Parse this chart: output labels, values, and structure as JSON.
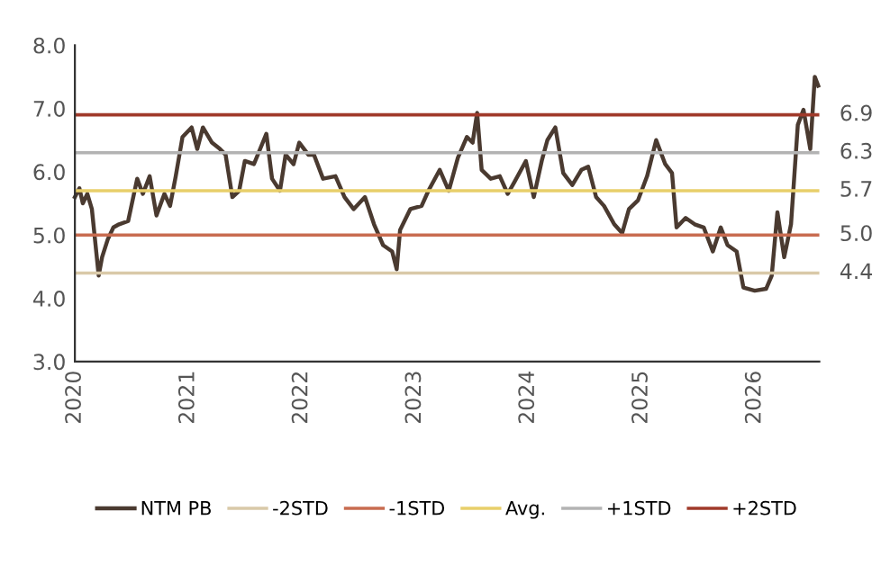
{
  "chart_data": {
    "type": "line",
    "x": [
      2020.0,
      2020.04,
      2020.07,
      2020.11,
      2020.15,
      2020.21,
      2020.24,
      2020.29,
      2020.34,
      2020.39,
      2020.47,
      2020.55,
      2020.6,
      2020.66,
      2020.72,
      2020.79,
      2020.84,
      2020.89,
      2020.95,
      2021.03,
      2021.08,
      2021.13,
      2021.21,
      2021.28,
      2021.33,
      2021.39,
      2021.45,
      2021.5,
      2021.58,
      2021.69,
      2021.74,
      2021.81,
      2021.86,
      2021.93,
      2021.98,
      2022.06,
      2022.11,
      2022.19,
      2022.3,
      2022.38,
      2022.46,
      2022.56,
      2022.64,
      2022.72,
      2022.8,
      2022.84,
      2022.87,
      2022.96,
      2023.06,
      2023.12,
      2023.22,
      2023.3,
      2023.38,
      2023.46,
      2023.51,
      2023.55,
      2023.59,
      2023.67,
      2023.75,
      2023.82,
      2023.88,
      2023.98,
      2024.05,
      2024.12,
      2024.17,
      2024.24,
      2024.31,
      2024.39,
      2024.47,
      2024.53,
      2024.6,
      2024.67,
      2024.76,
      2024.83,
      2024.89,
      2024.97,
      2025.05,
      2025.13,
      2025.21,
      2025.27,
      2025.31,
      2025.39,
      2025.47,
      2025.55,
      2025.63,
      2025.7,
      2025.76,
      2025.84,
      2025.9,
      2026.0,
      2026.1,
      2026.15,
      2026.2,
      2026.26,
      2026.32,
      2026.38,
      2026.43,
      2026.49,
      2026.53,
      2026.56
    ],
    "series": [
      {
        "name": "NTM PB",
        "color": "#4a3a30",
        "values": [
          5.6,
          5.74,
          5.5,
          5.65,
          5.41,
          4.36,
          4.65,
          4.93,
          5.12,
          5.17,
          5.22,
          5.89,
          5.65,
          5.93,
          5.31,
          5.65,
          5.46,
          5.93,
          6.55,
          6.7,
          6.36,
          6.7,
          6.46,
          6.36,
          6.27,
          5.6,
          5.7,
          6.17,
          6.12,
          6.6,
          5.89,
          5.7,
          6.27,
          6.12,
          6.46,
          6.27,
          6.27,
          5.89,
          5.93,
          5.6,
          5.41,
          5.6,
          5.17,
          4.84,
          4.74,
          4.46,
          5.08,
          5.41,
          5.46,
          5.7,
          6.03,
          5.7,
          6.22,
          6.55,
          6.46,
          6.93,
          6.03,
          5.89,
          5.93,
          5.65,
          5.84,
          6.17,
          5.6,
          6.17,
          6.5,
          6.7,
          5.98,
          5.79,
          6.03,
          6.08,
          5.6,
          5.46,
          5.17,
          5.03,
          5.41,
          5.55,
          5.93,
          6.5,
          6.12,
          5.98,
          5.12,
          5.27,
          5.17,
          5.12,
          4.74,
          5.12,
          4.84,
          4.74,
          4.17,
          4.12,
          4.15,
          4.36,
          5.36,
          4.65,
          5.17,
          6.74,
          6.98,
          6.36,
          7.5,
          7.36
        ]
      }
    ],
    "ref_lines": [
      {
        "axis": "y",
        "value": 4.4,
        "label": "-2STD",
        "color": "#d9c9a8"
      },
      {
        "axis": "y",
        "value": 5.0,
        "label": "-1STD",
        "color": "#c86c50"
      },
      {
        "axis": "y",
        "value": 5.7,
        "label": "Avg.",
        "color": "#e8cf6a"
      },
      {
        "axis": "y",
        "value": 6.3,
        "label": "+1STD",
        "color": "#b3b3b3"
      },
      {
        "axis": "y",
        "value": 6.9,
        "label": "+2STD",
        "color": "#a03a2a"
      }
    ],
    "annotations": [
      "4.4",
      "5.0",
      "5.7",
      "6.3",
      "6.9"
    ],
    "xlim": [
      2020.0,
      2026.57
    ],
    "xticks": [
      2020,
      2021,
      2022,
      2023,
      2024,
      2025,
      2026
    ],
    "ylim": [
      3.0,
      8.0
    ],
    "yticks": [
      {
        "value": 3.0,
        "label": "3.0"
      },
      {
        "value": 4.0,
        "label": "4.0"
      },
      {
        "value": 5.0,
        "label": "5.0"
      },
      {
        "value": 6.0,
        "label": "6.0"
      },
      {
        "value": 7.0,
        "label": "7.0"
      },
      {
        "value": 8.0,
        "label": "8.0"
      }
    ],
    "grid": false,
    "legend": "bottom",
    "marker": "none",
    "line_style": "solid"
  }
}
